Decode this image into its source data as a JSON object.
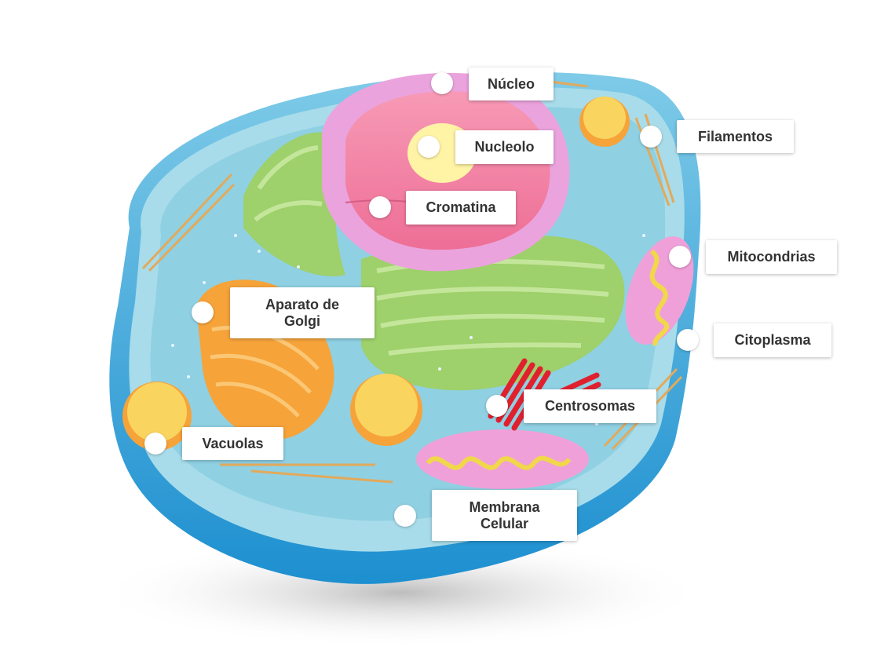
{
  "labels": {
    "nucleo": "Núcleo",
    "nucleolo": "Nucleolo",
    "filamentos": "Filamentos",
    "cromatina": "Cromatina",
    "mitocondrias": "Mitocondrias",
    "aparato_golgi": "Aparato de\nGolgi",
    "citoplasma": "Citoplasma",
    "centrosomas": "Centrosomas",
    "vacuolas": "Vacuolas",
    "membrana_celular": "Membrana\nCelular"
  },
  "colors": {
    "membrane_outer": "#2f9fd8",
    "membrane_inner": "#a8dcea",
    "cytoplasm": "#8fd0e3",
    "nucleus_envelope": "#eaa3dd",
    "nucleus_inside": "#f07aa0",
    "nucleolus": "#fff3a6",
    "er_green": "#9ed06b",
    "golgi_orange": "#f6a33a",
    "vacuole": "#f9d560",
    "mitochondria": "#f0a0d8",
    "centrosome_red": "#e0202e",
    "shadow": "#cfcfcf"
  }
}
